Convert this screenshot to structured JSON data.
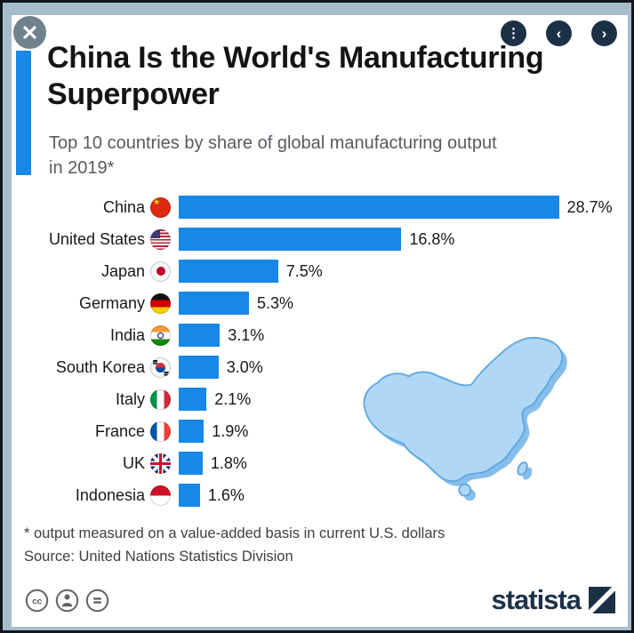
{
  "header": {
    "title": "China Is the World's Manufacturing Superpower",
    "subtitle": "Top 10 countries by share of global manufacturing output in 2019*"
  },
  "icons": {
    "close": "×",
    "menu": "⋮",
    "prev": "‹",
    "next": "›",
    "license": [
      "cc",
      "attribution-person",
      "equals"
    ]
  },
  "chart_data": {
    "type": "bar",
    "orientation": "horizontal",
    "title": "China Is the World's Manufacturing Superpower",
    "subtitle": "Top 10 countries by share of global manufacturing output in 2019*",
    "categories": [
      "China",
      "United States",
      "Japan",
      "Germany",
      "India",
      "South Korea",
      "Italy",
      "France",
      "UK",
      "Indonesia"
    ],
    "values": [
      28.7,
      16.8,
      7.5,
      5.3,
      3.1,
      3.0,
      2.1,
      1.9,
      1.8,
      1.6
    ],
    "value_labels": [
      "28.7%",
      "16.8%",
      "7.5%",
      "5.3%",
      "3.1%",
      "3.0%",
      "2.1%",
      "1.9%",
      "1.8%",
      "1.6%"
    ],
    "unit": "%",
    "xlim": [
      0,
      30
    ],
    "grid": false,
    "legend": false,
    "bar_color": "#1788e5",
    "annotation": "china-map-silhouette"
  },
  "footer": {
    "note": "* output measured on a value-added basis in current U.S. dollars",
    "source": "Source: United Nations Statistics Division",
    "brand": "statista"
  },
  "colors": {
    "bar": "#1788e5",
    "accent": "#1788e5",
    "navy": "#1c3146",
    "background": "#a6bdcc",
    "map_fill": "#b0d7f5",
    "map_shadow": "#86bde9"
  }
}
